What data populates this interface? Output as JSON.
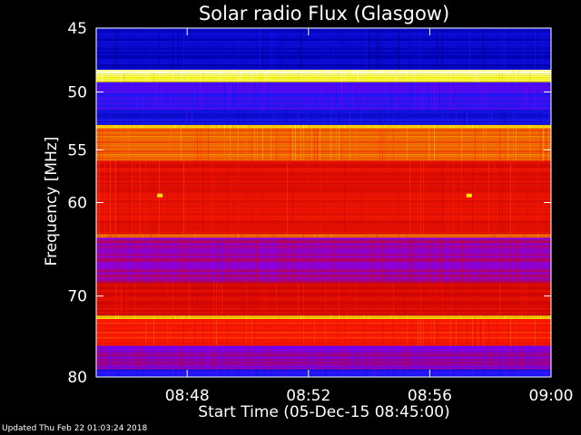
{
  "chart_data": {
    "type": "heatmap",
    "title": "Solar radio Flux (Glasgow)",
    "xlabel": "Start Time (05-Dec-15 08:45:00)",
    "ylabel": "Frequency [MHz]",
    "x_ticks": [
      "08:48",
      "08:52",
      "08:56",
      "09:00"
    ],
    "x_tick_minutes": [
      3,
      7,
      11,
      15
    ],
    "x_range_minutes": [
      0,
      15
    ],
    "y_ticks": [
      45,
      50,
      55,
      60,
      70,
      80
    ],
    "y_range_mhz": [
      45,
      80
    ],
    "y_scale": "log",
    "colormap": [
      "#000000",
      "#0000b4",
      "#1a1aff",
      "#8000ff",
      "#d00000",
      "#ff1a00",
      "#ff8000",
      "#ffff00",
      "#ffffff"
    ],
    "bands": [
      {
        "f0": 45.0,
        "f1": 48.2,
        "level": 0.15
      },
      {
        "f0": 48.2,
        "f1": 48.5,
        "level": 0.95
      },
      {
        "f0": 48.5,
        "f1": 49.2,
        "level": 0.9
      },
      {
        "f0": 49.2,
        "f1": 51.5,
        "level": 0.3
      },
      {
        "f0": 51.5,
        "f1": 52.8,
        "level": 0.22
      },
      {
        "f0": 52.8,
        "f1": 53.1,
        "level": 0.85
      },
      {
        "f0": 53.1,
        "f1": 56.0,
        "level": 0.72
      },
      {
        "f0": 56.0,
        "f1": 63.2,
        "level": 0.58
      },
      {
        "f0": 63.2,
        "f1": 63.6,
        "level": 0.7
      },
      {
        "f0": 63.6,
        "f1": 68.5,
        "level": 0.42
      },
      {
        "f0": 68.5,
        "f1": 72.3,
        "level": 0.55
      },
      {
        "f0": 72.3,
        "f1": 72.7,
        "level": 0.85
      },
      {
        "f0": 72.7,
        "f1": 76.0,
        "level": 0.62
      },
      {
        "f0": 76.0,
        "f1": 79.0,
        "level": 0.4
      },
      {
        "f0": 79.0,
        "f1": 80.0,
        "level": 0.25
      }
    ],
    "bursts": [
      {
        "t": 2.1,
        "f": 59.3
      },
      {
        "t": 12.3,
        "f": 59.3
      }
    ]
  },
  "footer": "Updated Thu Feb 22 01:03:24 2018"
}
